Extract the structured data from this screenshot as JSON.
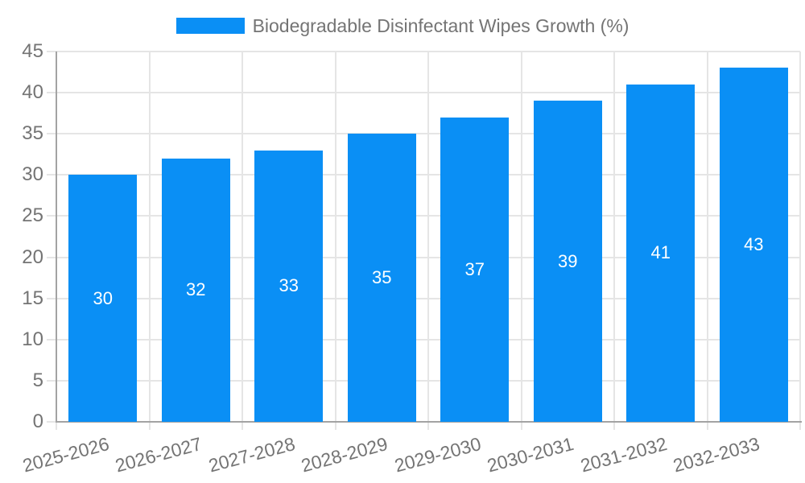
{
  "chart_data": {
    "type": "bar",
    "title": "Biodegradable Disinfectant Wipes Growth (%)",
    "categories": [
      "2025-2026",
      "2026-2027",
      "2027-2028",
      "2028-2029",
      "2029-2030",
      "2030-2031",
      "2031-2032",
      "2032-2033"
    ],
    "values": [
      30,
      32,
      33,
      35,
      37,
      39,
      41,
      43
    ],
    "bar_value_labels": [
      "30",
      "32",
      "33",
      "35",
      "37",
      "39",
      "41",
      "43"
    ],
    "xlabel": "",
    "ylabel": "",
    "ylim": [
      0,
      45
    ],
    "ytick_step": 5,
    "ytick_labels": [
      "0",
      "5",
      "10",
      "15",
      "20",
      "25",
      "30",
      "35",
      "40",
      "45"
    ],
    "grid": true,
    "legend_entries": [
      "Biodegradable Disinfectant Wipes Growth (%)"
    ],
    "legend_position": "top-center",
    "x_tick_label_rotation_deg": -15,
    "bar_color": "#0a8ff5",
    "bar_label_color": "#ffffff",
    "axis_text_color": "#747474",
    "grid_color": "#e5e5e5",
    "axis_line_color": "#a3a3a3",
    "background_color": "#ffffff"
  }
}
